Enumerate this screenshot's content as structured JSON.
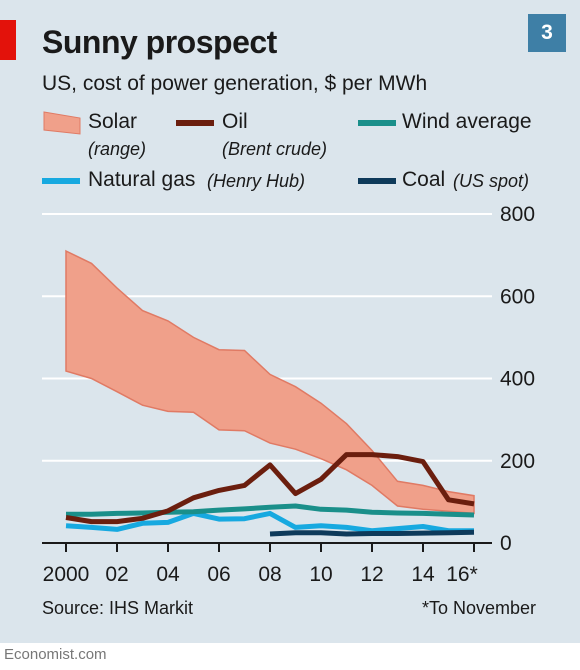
{
  "header": {
    "title": "Sunny prospect",
    "subtitle": "US, cost of power generation, $ per MWh",
    "chart_number": "3"
  },
  "legend": {
    "solar": {
      "label": "Solar",
      "sub": "(range)"
    },
    "oil": {
      "label": "Oil",
      "sub": "(Brent crude)"
    },
    "wind": {
      "label": "Wind average"
    },
    "gas": {
      "label": "Natural gas",
      "sub": "(Henry Hub)"
    },
    "coal": {
      "label": "Coal",
      "sub": "(US spot)"
    }
  },
  "footer": {
    "source": "Source: IHS Markit",
    "footnote": "*To November",
    "brand": "Economist.com"
  },
  "colors": {
    "solar_fill": "#f0a08a",
    "solar_edge": "#e07a64",
    "oil": "#6b1e0e",
    "wind": "#1a8f8a",
    "gas": "#17a9e0",
    "coal": "#0e3a5a",
    "grid": "#ffffff",
    "background": "#dbe5ec"
  },
  "chart_data": {
    "type": "line",
    "x": [
      2000,
      2001,
      2002,
      2003,
      2004,
      2005,
      2006,
      2007,
      2008,
      2009,
      2010,
      2011,
      2012,
      2013,
      2014,
      2015,
      2016
    ],
    "x_tick_values": [
      2000,
      2002,
      2004,
      2006,
      2008,
      2010,
      2012,
      2014,
      2016
    ],
    "x_tick_labels": [
      "2000",
      "02",
      "04",
      "06",
      "08",
      "10",
      "12",
      "14",
      "16*"
    ],
    "ylim": [
      0,
      800
    ],
    "y_ticks": [
      0,
      200,
      400,
      600,
      800
    ],
    "y_tick_labels": [
      "0",
      "200",
      "400",
      "600",
      "800"
    ],
    "y_axis_side": "right",
    "grid": true,
    "series": [
      {
        "name": "Solar",
        "kind": "range",
        "high": [
          710,
          680,
          620,
          565,
          540,
          500,
          470,
          468,
          410,
          380,
          340,
          290,
          225,
          150,
          140,
          125,
          115
        ],
        "low": [
          418,
          400,
          368,
          335,
          320,
          318,
          275,
          273,
          243,
          228,
          205,
          178,
          140,
          90,
          82,
          77,
          72
        ]
      },
      {
        "name": "Oil",
        "values": [
          62,
          52,
          52,
          60,
          78,
          110,
          128,
          140,
          190,
          120,
          155,
          215,
          215,
          210,
          198,
          105,
          95
        ]
      },
      {
        "name": "Wind average",
        "values": [
          70,
          70,
          72,
          73,
          75,
          76,
          80,
          83,
          87,
          90,
          82,
          80,
          75,
          73,
          72,
          70,
          68
        ]
      },
      {
        "name": "Natural gas",
        "values": [
          42,
          38,
          33,
          48,
          50,
          72,
          58,
          59,
          72,
          38,
          42,
          38,
          30,
          35,
          40,
          30,
          30
        ]
      },
      {
        "name": "Coal",
        "x": [
          2008,
          2009,
          2010,
          2011,
          2012,
          2013,
          2014,
          2015,
          2016
        ],
        "values": [
          22,
          25,
          25,
          22,
          23,
          23,
          24,
          25,
          26
        ]
      }
    ]
  }
}
